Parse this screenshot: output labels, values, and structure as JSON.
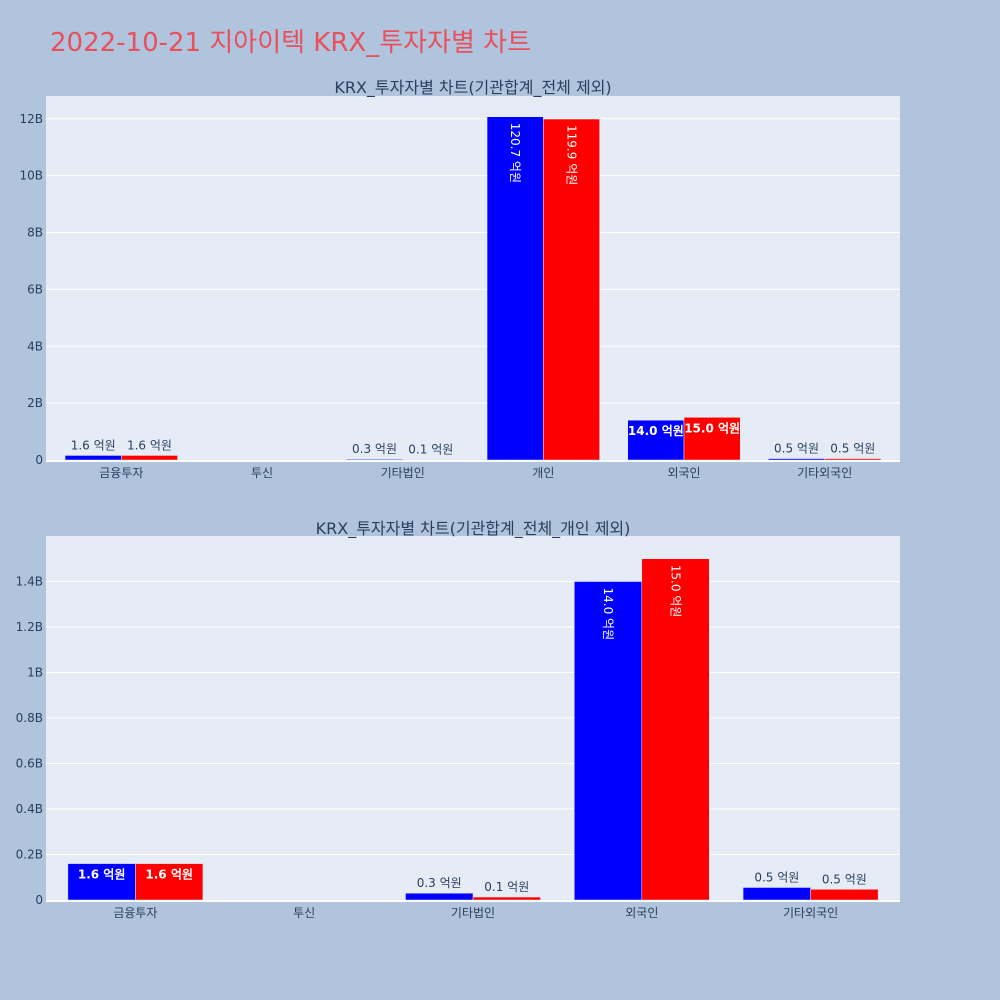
{
  "page": {
    "title": "2022-10-21 지아이텍 KRX_투자자별 차트",
    "background": "#b0c4de",
    "title_color": "#e8505b"
  },
  "chart_data": [
    {
      "type": "bar",
      "title": "KRX_투자자별 차트(기관합계_전체 제외)",
      "categories": [
        "금융투자",
        "투신",
        "기타법인",
        "개인",
        "외국인",
        "기타외국인"
      ],
      "ylim": [
        0,
        12.8
      ],
      "yticks": [
        "0",
        "2B",
        "4B",
        "6B",
        "8B",
        "10B",
        "12B"
      ],
      "ytick_values": [
        0,
        2,
        4,
        6,
        8,
        10,
        12
      ],
      "unit": "billions",
      "grid": true,
      "series": [
        {
          "color": "#0000ff",
          "values": [
            0.16,
            0,
            0.03,
            12.07,
            1.4,
            0.05
          ],
          "labels": [
            "1.6 억원",
            "",
            "0.3 억원",
            "120.7 억원",
            "14.0 억원",
            "0.5 억원"
          ]
        },
        {
          "color": "#ff0000",
          "values": [
            0.16,
            0,
            0.01,
            11.99,
            1.5,
            0.05
          ],
          "labels": [
            "1.6 억원",
            "",
            "0.1 억원",
            "119.9 억원",
            "15.0 억원",
            "0.5 억원"
          ]
        }
      ]
    },
    {
      "type": "bar",
      "title": "KRX_투자자별 차트(기관합계_전체_개인 제외)",
      "categories": [
        "금융투자",
        "투신",
        "기타법인",
        "외국인",
        "기타외국인"
      ],
      "ylim": [
        0,
        1.6
      ],
      "yticks": [
        "0",
        "0.2B",
        "0.4B",
        "0.6B",
        "0.8B",
        "1B",
        "1.2B",
        "1.4B"
      ],
      "ytick_values": [
        0,
        0.2,
        0.4,
        0.6,
        0.8,
        1.0,
        1.2,
        1.4
      ],
      "unit": "billions",
      "grid": true,
      "series": [
        {
          "color": "#0000ff",
          "values": [
            0.16,
            0,
            0.03,
            1.4,
            0.055
          ],
          "labels": [
            "1.6 억원",
            "",
            "0.3 억원",
            "14.0 억원",
            "0.5 억원"
          ]
        },
        {
          "color": "#ff0000",
          "values": [
            0.16,
            0,
            0.013,
            1.5,
            0.047
          ],
          "labels": [
            "1.6 억원",
            "",
            "0.1 억원",
            "15.0 억원",
            "0.5 억원"
          ]
        }
      ]
    }
  ]
}
